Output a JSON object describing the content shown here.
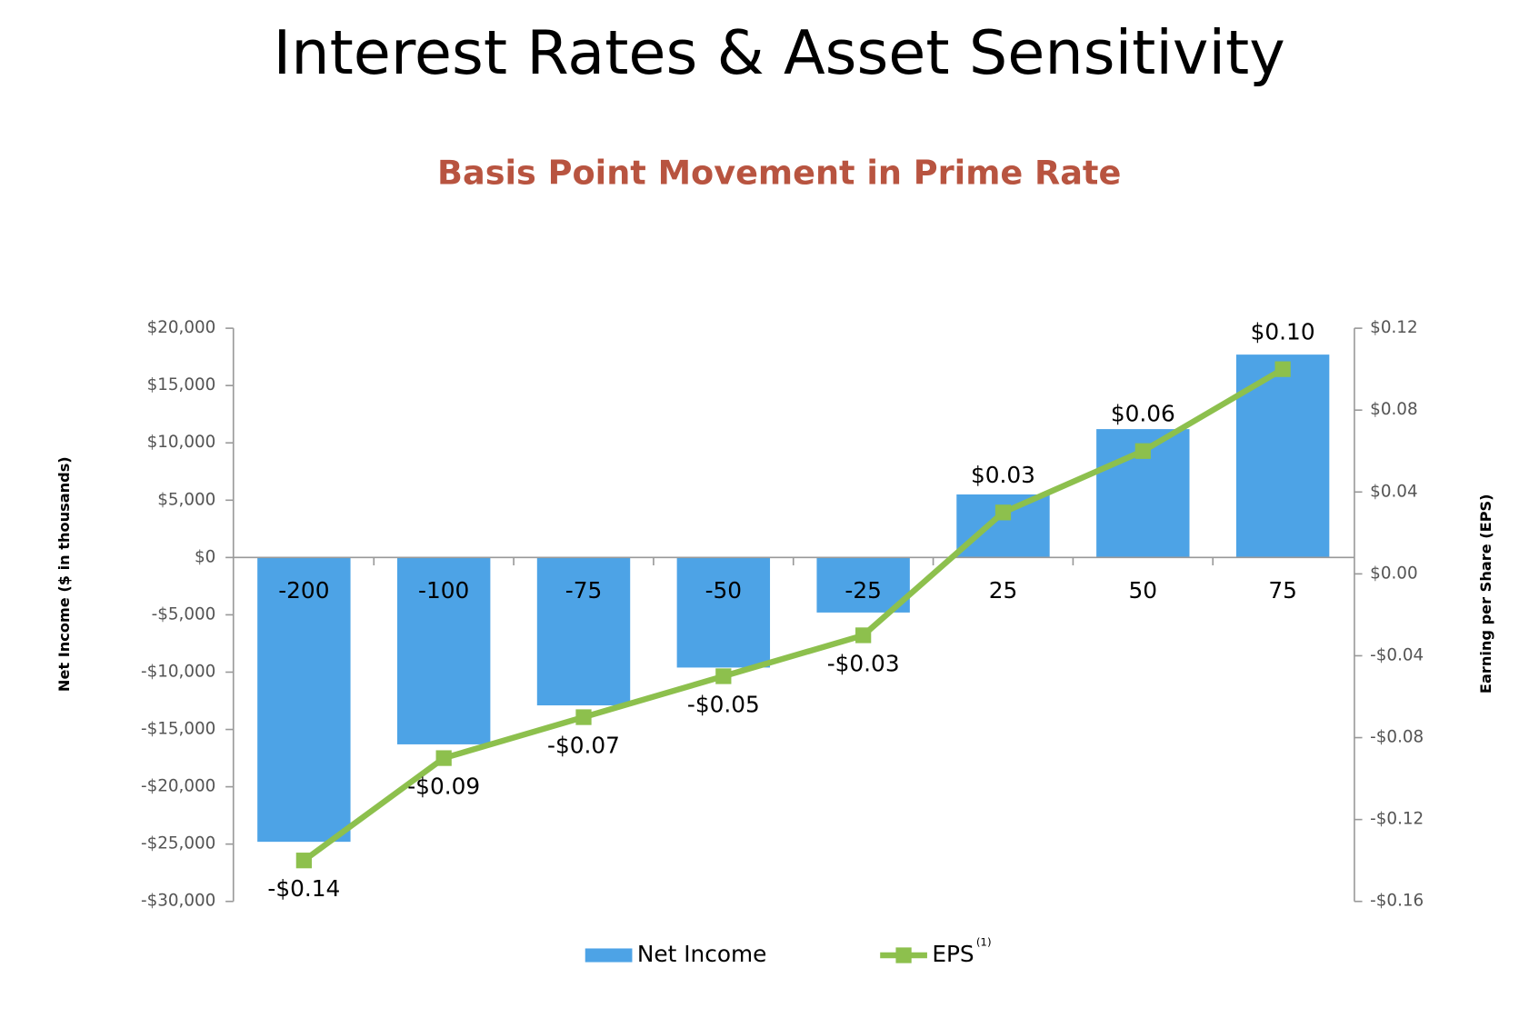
{
  "chart_data": {
    "type": "bar_line",
    "title": "Interest Rates & Asset Sensitivity",
    "subtitle": "Basis Point Movement in Prime Rate",
    "y_label": "Net Income ($ in thousands)",
    "y2_label": "Earning per Share (EPS)",
    "categories": [
      "-200",
      "-100",
      "-75",
      "-50",
      "-25",
      "25",
      "50",
      "75"
    ],
    "series": [
      {
        "name": "Net Income",
        "color": "#4da3e6",
        "kind": "bar",
        "axis": "y",
        "values": [
          -24800,
          -16300,
          -12900,
          -9600,
          -4800,
          5500,
          11200,
          17700
        ]
      },
      {
        "name": "EPS",
        "color": "#8dc04d",
        "kind": "line",
        "axis": "y2",
        "footnote_marker": "(1)",
        "values": [
          -0.14,
          -0.09,
          -0.07,
          -0.05,
          -0.03,
          0.03,
          0.06,
          0.1
        ],
        "value_labels": [
          "-$0.14",
          "-$0.09",
          "-$0.07",
          "-$0.05",
          "-$0.03",
          "$0.03",
          "$0.06",
          "$0.10"
        ]
      }
    ],
    "ylim": [
      -30000,
      20000
    ],
    "yticks": [
      {
        "value": -30000,
        "label": "-$30,000"
      },
      {
        "value": -25000,
        "label": "-$25,000"
      },
      {
        "value": -20000,
        "label": "-$20,000"
      },
      {
        "value": -15000,
        "label": "-$15,000"
      },
      {
        "value": -10000,
        "label": "-$10,000"
      },
      {
        "value": -5000,
        "label": "-$5,000"
      },
      {
        "value": 0,
        "label": "$0"
      },
      {
        "value": 5000,
        "label": "$5,000"
      },
      {
        "value": 10000,
        "label": "$10,000"
      },
      {
        "value": 15000,
        "label": "$15,000"
      },
      {
        "value": 20000,
        "label": "$20,000"
      }
    ],
    "y2lim": [
      -0.16,
      0.12
    ],
    "y2ticks": [
      {
        "value": -0.16,
        "label": "-$0.16"
      },
      {
        "value": -0.12,
        "label": "-$0.12"
      },
      {
        "value": -0.08,
        "label": "-$0.08"
      },
      {
        "value": -0.04,
        "label": "-$0.04"
      },
      {
        "value": 0,
        "label": "$0.00"
      },
      {
        "value": 0.04,
        "label": "$0.04"
      },
      {
        "value": 0.08,
        "label": "$0.08"
      },
      {
        "value": 0.12,
        "label": "$0.12"
      }
    ],
    "legend": "bottom"
  }
}
